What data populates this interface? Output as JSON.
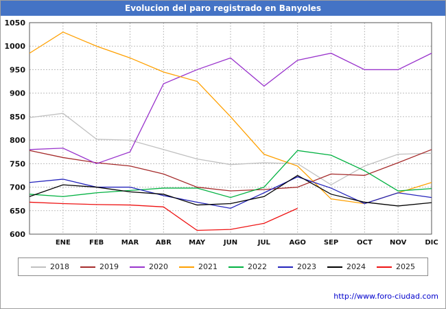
{
  "title": "Evolucion del paro registrado en Banyoles",
  "header": {
    "bg_color": "#4473c5",
    "text_color": "#ffffff"
  },
  "footer": {
    "link": "http://www.foro-ciudad.com"
  },
  "chart_data": {
    "type": "line",
    "title": "Evolucion del paro registrado en Banyoles",
    "x_labels": [
      "",
      "ENE",
      "FEB",
      "MAR",
      "ABR",
      "MAY",
      "JUN",
      "JUL",
      "AGO",
      "SEP",
      "OCT",
      "NOV",
      "DIC"
    ],
    "x_note": "first point of each series sits unlabeled at the left axis edge, before ENE",
    "ylim": [
      600,
      1050
    ],
    "y_tick_step": 50,
    "grid": true,
    "legend_position": "bottom",
    "series": [
      {
        "name": "2018",
        "color": "#c0c0c0",
        "values": [
          848,
          857,
          802,
          800,
          780,
          760,
          748,
          752,
          750,
          705,
          745,
          770,
          772
        ]
      },
      {
        "name": "2019",
        "color": "#a52a2a",
        "values": [
          778,
          763,
          752,
          745,
          728,
          700,
          692,
          695,
          700,
          728,
          725,
          752,
          780
        ]
      },
      {
        "name": "2020",
        "color": "#9933cc",
        "values": [
          780,
          783,
          750,
          775,
          920,
          950,
          975,
          915,
          970,
          985,
          950,
          950,
          985
        ]
      },
      {
        "name": "2021",
        "color": "#ffa000",
        "values": [
          985,
          1030,
          1000,
          975,
          945,
          925,
          850,
          770,
          745,
          675,
          665,
          688,
          710
        ]
      },
      {
        "name": "2022",
        "color": "#00b140",
        "values": [
          685,
          680,
          688,
          693,
          698,
          698,
          678,
          700,
          778,
          768,
          735,
          692,
          697
        ]
      },
      {
        "name": "2023",
        "color": "#2222bb",
        "values": [
          710,
          717,
          700,
          700,
          682,
          668,
          655,
          688,
          722,
          698,
          665,
          688,
          678
        ]
      },
      {
        "name": "2024",
        "color": "#000000",
        "values": [
          680,
          705,
          700,
          690,
          685,
          662,
          665,
          680,
          725,
          685,
          668,
          660,
          667
        ]
      },
      {
        "name": "2025",
        "color": "#ee1111",
        "values": [
          668,
          665,
          663,
          662,
          658,
          608,
          610,
          623,
          655
        ]
      }
    ]
  }
}
